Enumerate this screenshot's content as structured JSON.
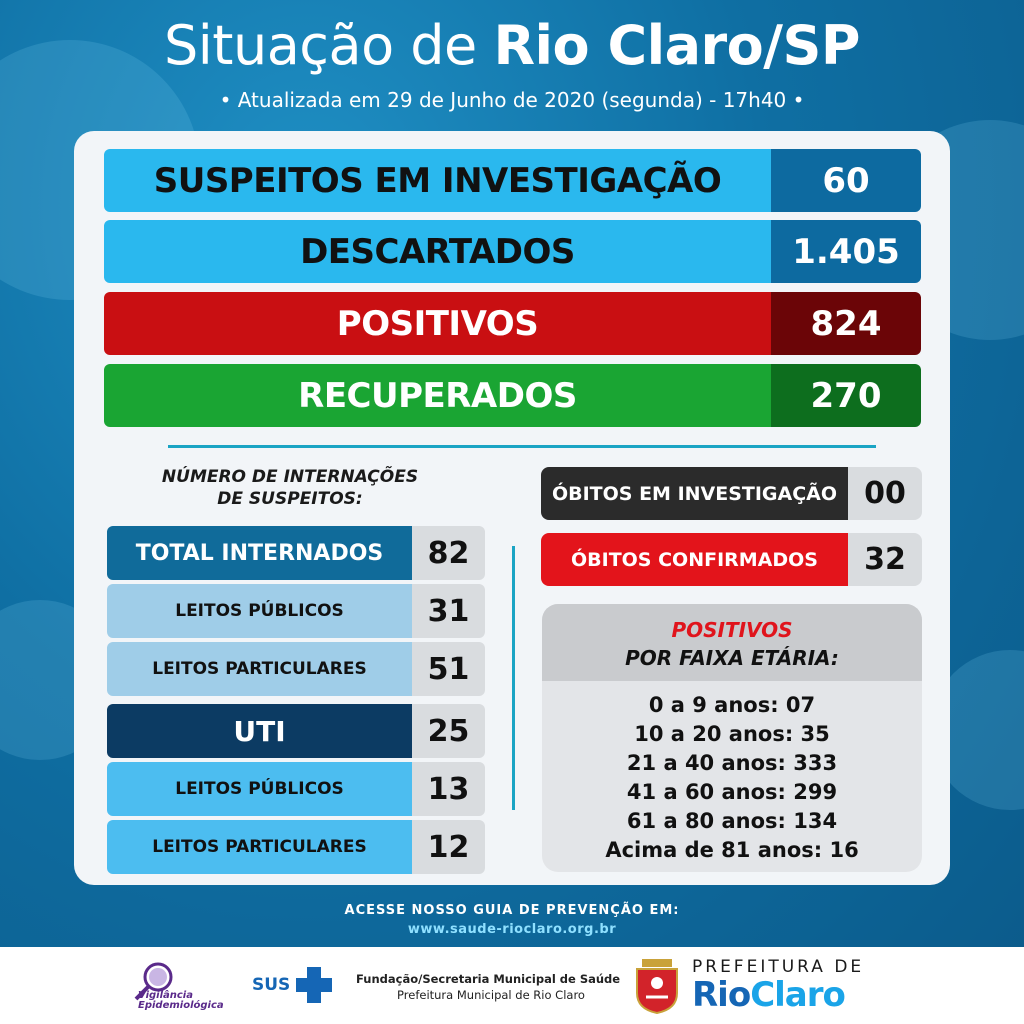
{
  "header": {
    "title_prefix": "Situação de ",
    "title_bold": "Rio Claro/SP",
    "subtitle": "• Atualizada em 29 de Junho de 2020 (segunda) - 17h40 •"
  },
  "summary": [
    {
      "label": "SUSPEITOS EM INVESTIGAÇÃO",
      "value": "60",
      "label_bg": "#2ab8ee",
      "value_bg": "#0d6aa0",
      "label_color": "#111111",
      "value_color": "#ffffff"
    },
    {
      "label": "DESCARTADOS",
      "value": "1.405",
      "label_bg": "#2ab8ee",
      "value_bg": "#0d6aa0",
      "label_color": "#111111",
      "value_color": "#ffffff"
    },
    {
      "label": "POSITIVOS",
      "value": "824",
      "label_bg": "#c90f12",
      "value_bg": "#6b0507",
      "label_color": "#ffffff",
      "value_color": "#ffffff"
    },
    {
      "label": "RECUPERADOS",
      "value": "270",
      "label_bg": "#1aa533",
      "value_bg": "#0d6e1e",
      "label_color": "#ffffff",
      "value_color": "#ffffff"
    }
  ],
  "internacoes": {
    "title_line1": "NÚMERO DE INTERNAÇÕES",
    "title_line2": "DE SUSPEITOS:",
    "rows": [
      {
        "label": "TOTAL INTERNADOS",
        "value": "82"
      },
      {
        "label": "LEITOS PÚBLICOS",
        "value": "31"
      },
      {
        "label": "LEITOS PARTICULARES",
        "value": "51"
      },
      {
        "label": "UTI",
        "value": "25"
      },
      {
        "label": "LEITOS PÚBLICOS",
        "value": "13"
      },
      {
        "label": "LEITOS PARTICULARES",
        "value": "12"
      }
    ]
  },
  "obitos": [
    {
      "label": "ÓBITOS EM INVESTIGAÇÃO",
      "value": "00",
      "bg": "#2b2b2b"
    },
    {
      "label": "ÓBITOS CONFIRMADOS",
      "value": "32",
      "bg": "#e3141b"
    }
  ],
  "faixa_etaria": {
    "title_red": "POSITIVOS",
    "title_black": "POR FAIXA ETÁRIA:",
    "items": [
      "0 a 9 anos: 07",
      "10 a 20 anos: 35",
      "21 a 40 anos: 333",
      "41 a 60 anos: 299",
      "61 a 80 anos: 134",
      "Acima de 81 anos: 16"
    ]
  },
  "guide": {
    "text": "ACESSE NOSSO GUIA DE PREVENÇÃO EM:",
    "url": "www.saude-rioclaro.org.br"
  },
  "footer": {
    "vigilancia_line1": "Vigilância",
    "vigilancia_line2": "Epidemiológica",
    "sus": "SUS",
    "fundacao_line1": "Fundação/Secretaria Municipal de Saúde",
    "fundacao_line2": "Prefeitura Municipal de Rio Claro",
    "prefeitura_line1": "PREFEITURA DE",
    "prefeitura_rio": "Rio",
    "prefeitura_claro": "Claro"
  }
}
